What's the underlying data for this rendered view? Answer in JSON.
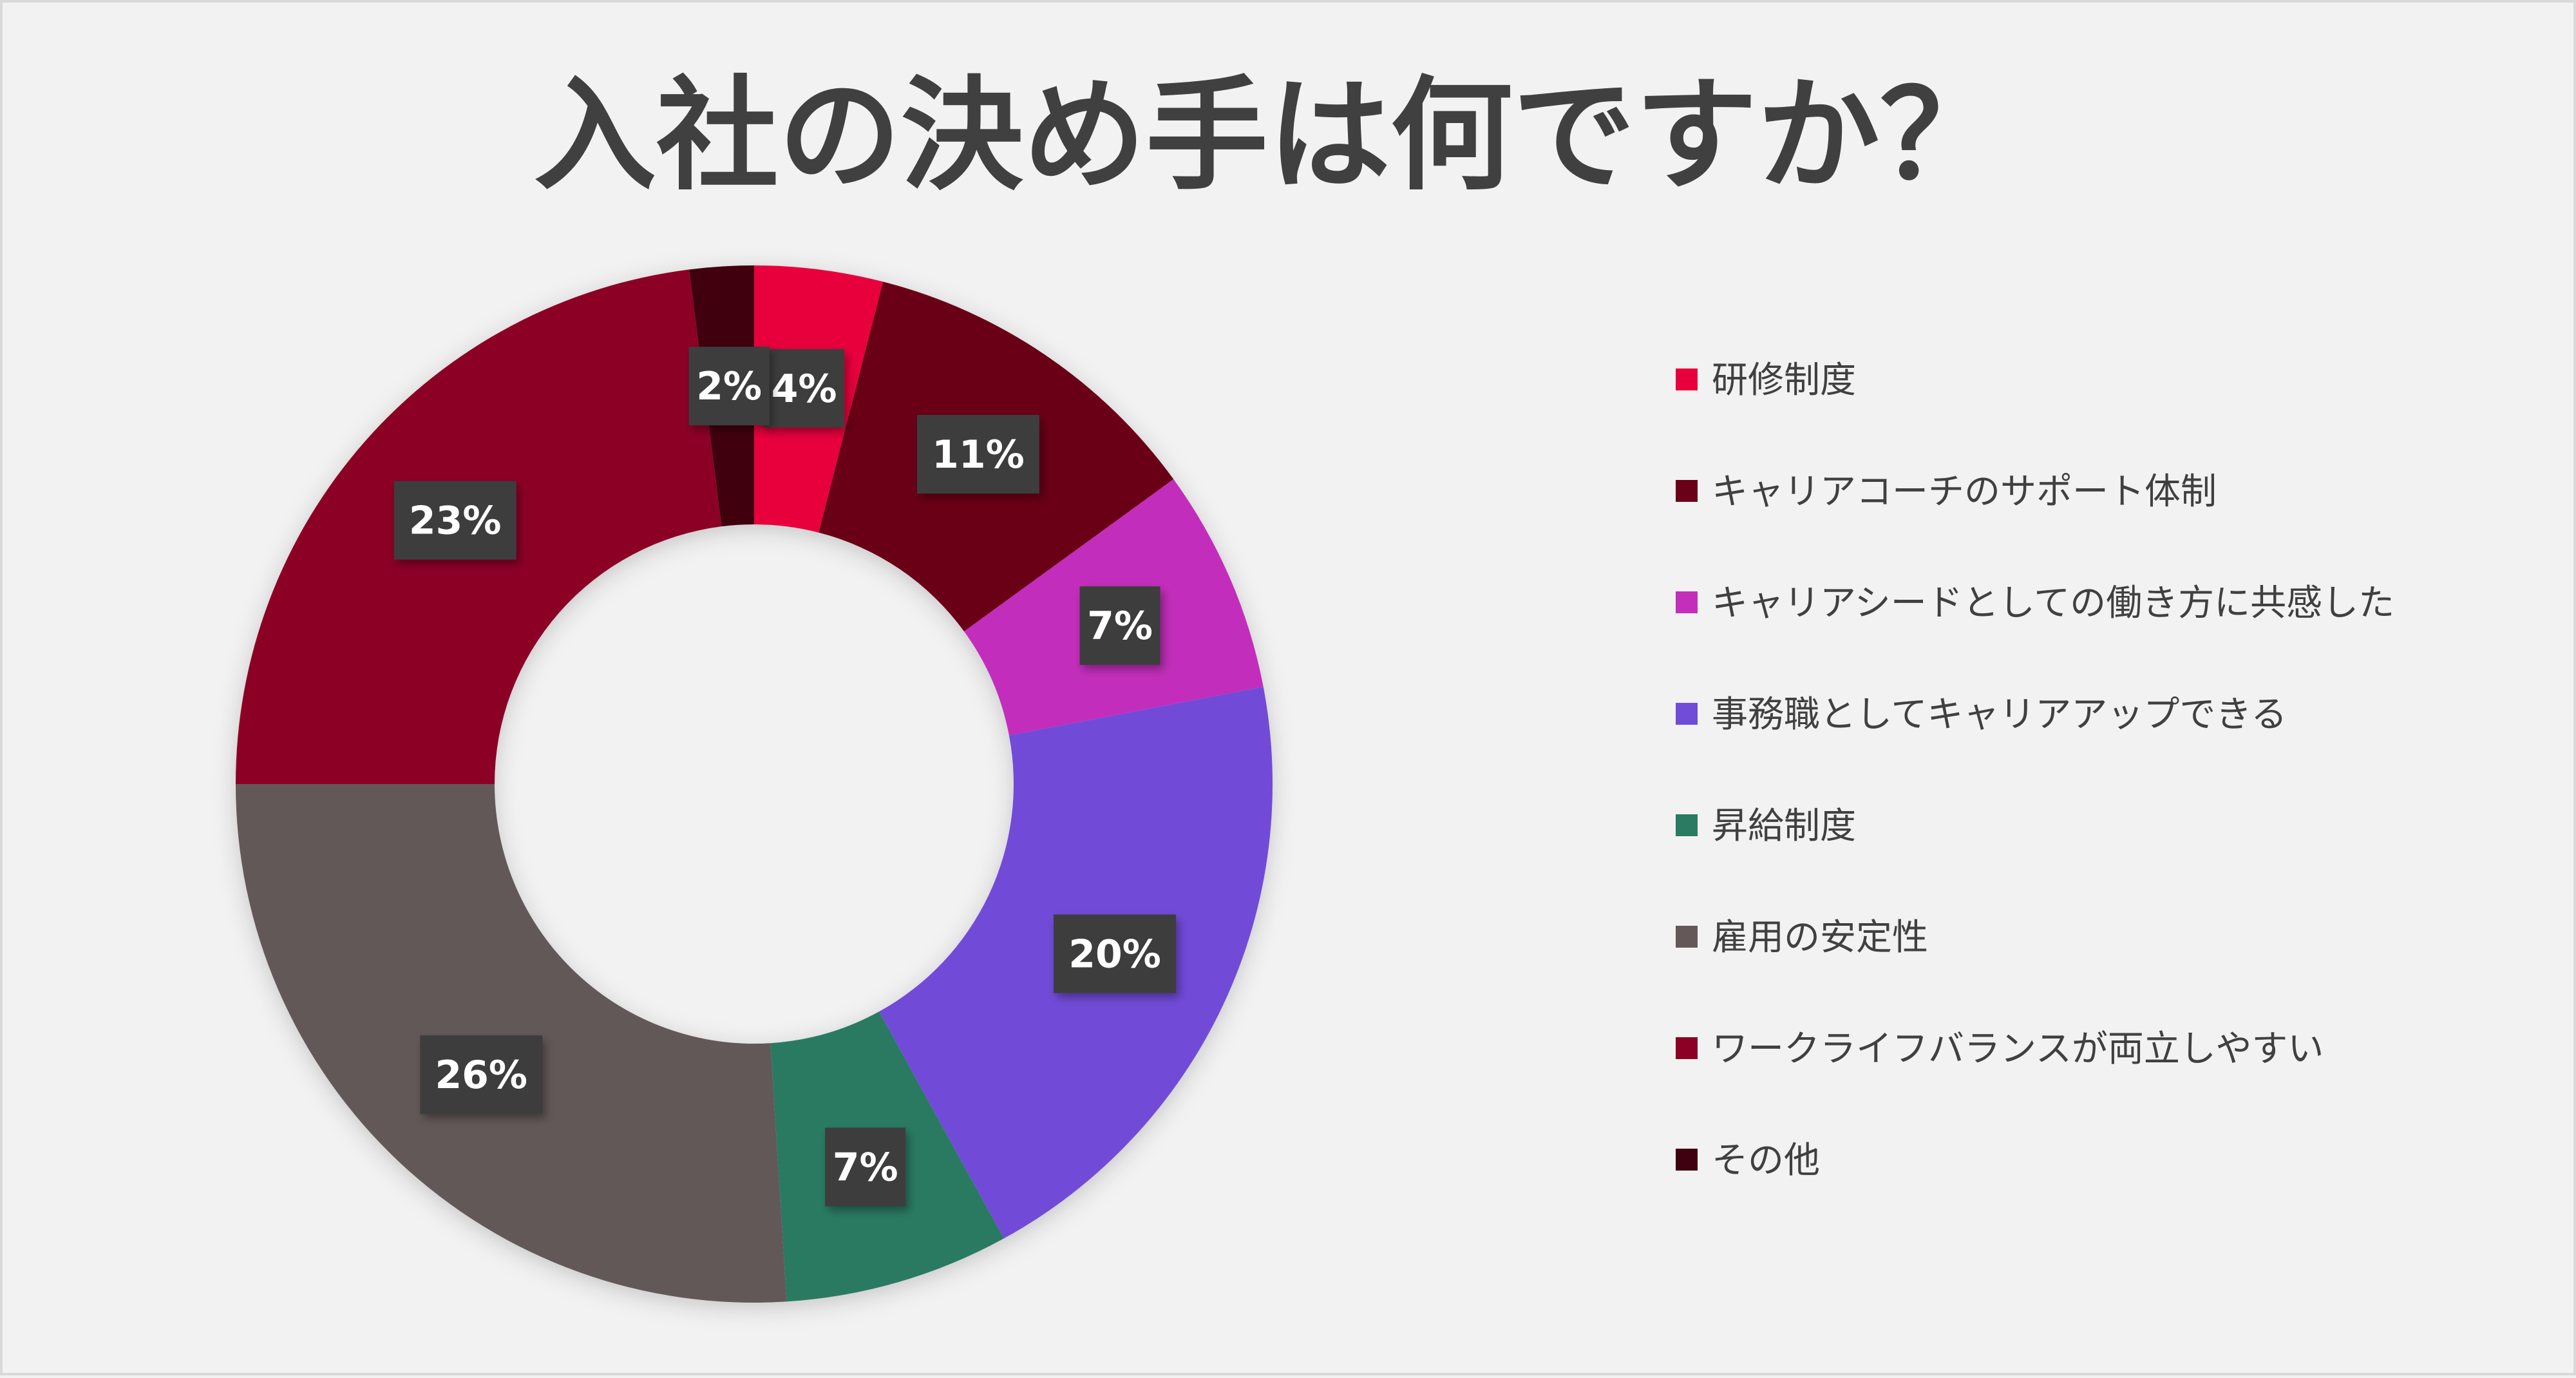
{
  "chart_data": {
    "type": "pie",
    "title": "入社の決め手は何ですか？",
    "legend_position": "right",
    "categories": [
      "研修制度",
      "キャリアコーチのサポート体制",
      "キャリアシードとしての働き方に共感した",
      "事務職としてキャリアアップできる",
      "昇給制度",
      "雇用の安定性",
      "ワークライフバランスが両立しやすい",
      "その他"
    ],
    "values": [
      4,
      11,
      7,
      20,
      7,
      26,
      23,
      2
    ],
    "labels": [
      "4%",
      "11%",
      "7%",
      "20%",
      "7%",
      "26%",
      "23%",
      "2%"
    ],
    "colors": [
      "#e8003d",
      "#6b0019",
      "#c22fbb",
      "#714cd8",
      "#2b7a62",
      "#645859",
      "#8c0025",
      "#3f0010"
    ]
  }
}
